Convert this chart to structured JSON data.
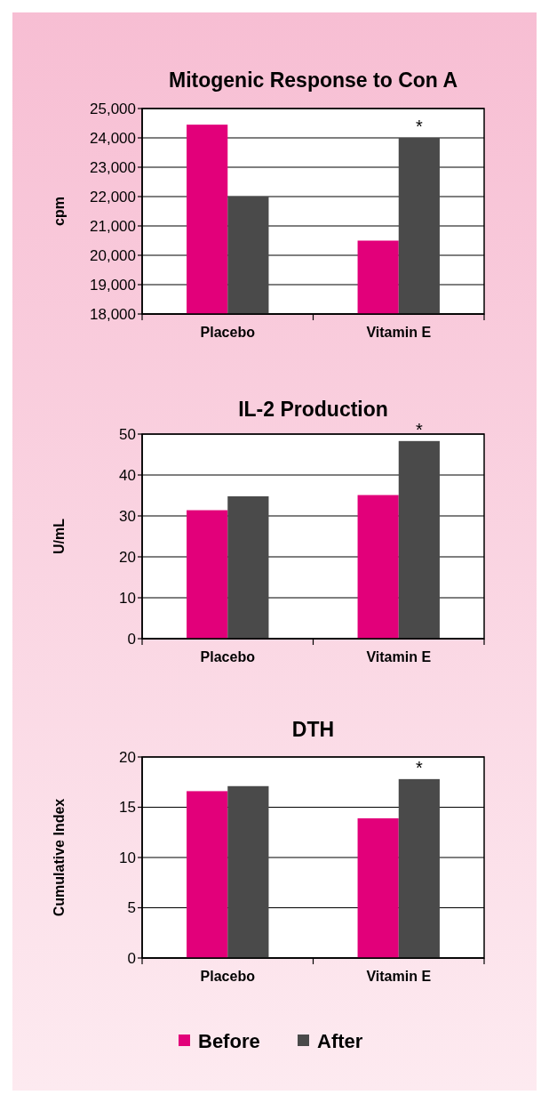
{
  "chart_data": [
    {
      "type": "bar",
      "title": "Mitogenic Response to Con A",
      "ylabel": "cpm",
      "categories": [
        "Placebo",
        "Vitamin E"
      ],
      "series": [
        {
          "color": "#e2007a",
          "values": [
            24450,
            20500
          ]
        },
        {
          "color": "#4a4a4a",
          "values": [
            22000,
            24000
          ]
        }
      ],
      "ylim": [
        18000,
        25000
      ],
      "yticks": [
        {
          "value": 18000,
          "label": "18,000"
        },
        {
          "value": 19000,
          "label": "19,000"
        },
        {
          "value": 20000,
          "label": "20,000"
        },
        {
          "value": 21000,
          "label": "21,000"
        },
        {
          "value": 22000,
          "label": "22,000"
        },
        {
          "value": 23000,
          "label": "23,000"
        },
        {
          "value": 24000,
          "label": "24,000"
        },
        {
          "value": 25000,
          "label": "25,000"
        }
      ],
      "grid": "y",
      "annotations": [
        {
          "text": "*",
          "x": "Vitamin E",
          "y": 24000
        }
      ]
    },
    {
      "type": "bar",
      "title": "IL-2 Production",
      "ylabel": "U/mL",
      "categories": [
        "Placebo",
        "Vitamin E"
      ],
      "series": [
        {
          "color": "#e2007a",
          "values": [
            31.4,
            35.1
          ]
        },
        {
          "color": "#4a4a4a",
          "values": [
            34.8,
            48.3
          ]
        }
      ],
      "ylim": [
        0,
        50
      ],
      "yticks": [
        0,
        10,
        20,
        30,
        40,
        50
      ],
      "grid": "y",
      "annotations": [
        {
          "text": "*",
          "x": "Vitamin E",
          "y": 48.3
        }
      ]
    },
    {
      "type": "bar",
      "title": "DTH",
      "ylabel": "Cumulative Index",
      "categories": [
        "Placebo",
        "Vitamin E"
      ],
      "series": [
        {
          "name": "Before",
          "color": "#e2007a",
          "values": [
            16.6,
            13.9
          ]
        },
        {
          "name": "After",
          "color": "#4a4a4a",
          "values": [
            17.1,
            17.8
          ]
        }
      ],
      "ylim": [
        0,
        20
      ],
      "yticks": [
        0,
        5,
        10,
        15,
        20
      ],
      "grid": "y",
      "legend": "bottom",
      "annotations": [
        {
          "text": "*",
          "x": "Vitamin E",
          "y": 17.8
        }
      ]
    }
  ]
}
